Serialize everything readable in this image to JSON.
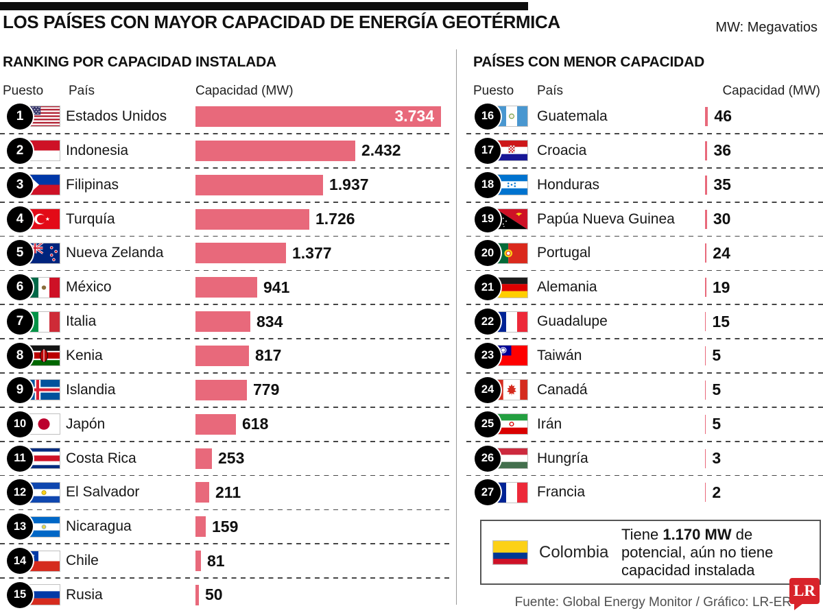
{
  "header": {
    "title": "LOS PAÍSES CON MAYOR CAPACIDAD DE ENERGÍA GEOTÉRMICA",
    "unit_note": "MW: Megavatios"
  },
  "left_section": {
    "heading": "RANKING POR CAPACIDAD INSTALADA",
    "columns": {
      "rank": "Puesto",
      "country": "País",
      "capacity": "Capacidad (MW)"
    },
    "rows": [
      {
        "rank": 1,
        "country": "Estados Unidos",
        "capacity": "3.734",
        "capacity_mw": 3734,
        "flag": "us",
        "label_inside": true
      },
      {
        "rank": 2,
        "country": "Indonesia",
        "capacity": "2.432",
        "capacity_mw": 2432,
        "flag": "id"
      },
      {
        "rank": 3,
        "country": "Filipinas",
        "capacity": "1.937",
        "capacity_mw": 1937,
        "flag": "ph"
      },
      {
        "rank": 4,
        "country": "Turquía",
        "capacity": "1.726",
        "capacity_mw": 1726,
        "flag": "tr"
      },
      {
        "rank": 5,
        "country": "Nueva Zelanda",
        "capacity": "1.377",
        "capacity_mw": 1377,
        "flag": "nz"
      },
      {
        "rank": 6,
        "country": "México",
        "capacity": "941",
        "capacity_mw": 941,
        "flag": "mx"
      },
      {
        "rank": 7,
        "country": "Italia",
        "capacity": "834",
        "capacity_mw": 834,
        "flag": "it"
      },
      {
        "rank": 8,
        "country": "Kenia",
        "capacity": "817",
        "capacity_mw": 817,
        "flag": "ke"
      },
      {
        "rank": 9,
        "country": "Islandia",
        "capacity": "779",
        "capacity_mw": 779,
        "flag": "is"
      },
      {
        "rank": 10,
        "country": "Japón",
        "capacity": "618",
        "capacity_mw": 618,
        "flag": "jp"
      },
      {
        "rank": 11,
        "country": "Costa Rica",
        "capacity": "253",
        "capacity_mw": 253,
        "flag": "cr"
      },
      {
        "rank": 12,
        "country": "El Salvador",
        "capacity": "211",
        "capacity_mw": 211,
        "flag": "sv"
      },
      {
        "rank": 13,
        "country": "Nicaragua",
        "capacity": "159",
        "capacity_mw": 159,
        "flag": "ni"
      },
      {
        "rank": 14,
        "country": "Chile",
        "capacity": "81",
        "capacity_mw": 81,
        "flag": "cl"
      },
      {
        "rank": 15,
        "country": "Rusia",
        "capacity": "50",
        "capacity_mw": 50,
        "flag": "ru"
      }
    ]
  },
  "right_section": {
    "heading": "PAÍSES CON MENOR CAPACIDAD",
    "columns": {
      "rank": "Puesto",
      "country": "País",
      "capacity": "Capacidad (MW)"
    },
    "rows": [
      {
        "rank": 16,
        "country": "Guatemala",
        "capacity": "46",
        "capacity_mw": 46,
        "flag": "gt"
      },
      {
        "rank": 17,
        "country": "Croacia",
        "capacity": "36",
        "capacity_mw": 36,
        "flag": "hr"
      },
      {
        "rank": 18,
        "country": "Honduras",
        "capacity": "35",
        "capacity_mw": 35,
        "flag": "hn"
      },
      {
        "rank": 19,
        "country": "Papúa Nueva Guinea",
        "capacity": "30",
        "capacity_mw": 30,
        "flag": "pg"
      },
      {
        "rank": 20,
        "country": "Portugal",
        "capacity": "24",
        "capacity_mw": 24,
        "flag": "pt"
      },
      {
        "rank": 21,
        "country": "Alemania",
        "capacity": "19",
        "capacity_mw": 19,
        "flag": "de"
      },
      {
        "rank": 22,
        "country": "Guadalupe",
        "capacity": "15",
        "capacity_mw": 15,
        "flag": "gp"
      },
      {
        "rank": 23,
        "country": "Taiwán",
        "capacity": "5",
        "capacity_mw": 5,
        "flag": "tw"
      },
      {
        "rank": 24,
        "country": "Canadá",
        "capacity": "5",
        "capacity_mw": 5,
        "flag": "ca"
      },
      {
        "rank": 25,
        "country": "Irán",
        "capacity": "5",
        "capacity_mw": 5,
        "flag": "ir"
      },
      {
        "rank": 26,
        "country": "Hungría",
        "capacity": "3",
        "capacity_mw": 3,
        "flag": "hu"
      },
      {
        "rank": 27,
        "country": "Francia",
        "capacity": "2",
        "capacity_mw": 2,
        "flag": "fr"
      }
    ]
  },
  "colombia_note": {
    "country": "Colombia",
    "flag": "co",
    "text_prefix": "Tiene ",
    "highlight": "1.170 MW",
    "text_suffix": " de potencial,  aún no tiene capacidad instalada"
  },
  "footer": {
    "source": "Fuente: Global Energy Monitor / Gráfico: LR-ER",
    "logo_text": "LR"
  },
  "colors": {
    "bar_pink": "#e8697b",
    "badge_black": "#000000",
    "lr_red": "#d8232a"
  },
  "chart_data": [
    {
      "type": "bar",
      "orientation": "horizontal",
      "title": "RANKING POR CAPACIDAD INSTALADA",
      "unit": "MW",
      "categories": [
        "Estados Unidos",
        "Indonesia",
        "Filipinas",
        "Turquía",
        "Nueva Zelanda",
        "México",
        "Italia",
        "Kenia",
        "Islandia",
        "Japón",
        "Costa Rica",
        "El Salvador",
        "Nicaragua",
        "Chile",
        "Rusia"
      ],
      "values": [
        3734,
        2432,
        1937,
        1726,
        1377,
        941,
        834,
        817,
        779,
        618,
        253,
        211,
        159,
        81,
        50
      ],
      "xlabel": "Capacidad (MW)",
      "ylabel": "País",
      "xlim": [
        0,
        3900
      ],
      "bar_color": "#e8697b",
      "legend": false,
      "grid": false
    },
    {
      "type": "bar",
      "orientation": "horizontal",
      "title": "PAÍSES CON MENOR CAPACIDAD",
      "unit": "MW",
      "categories": [
        "Guatemala",
        "Croacia",
        "Honduras",
        "Papúa Nueva Guinea",
        "Portugal",
        "Alemania",
        "Guadalupe",
        "Taiwán",
        "Canadá",
        "Irán",
        "Hungría",
        "Francia"
      ],
      "values": [
        46,
        36,
        35,
        30,
        24,
        19,
        15,
        5,
        5,
        5,
        3,
        2
      ],
      "xlabel": "Capacidad (MW)",
      "ylabel": "País",
      "xlim": [
        0,
        3900
      ],
      "bar_color": "#e8697b",
      "legend": false,
      "grid": false,
      "annotation": "Colombia: Tiene 1.170 MW de potencial, aún no tiene capacidad instalada"
    }
  ]
}
